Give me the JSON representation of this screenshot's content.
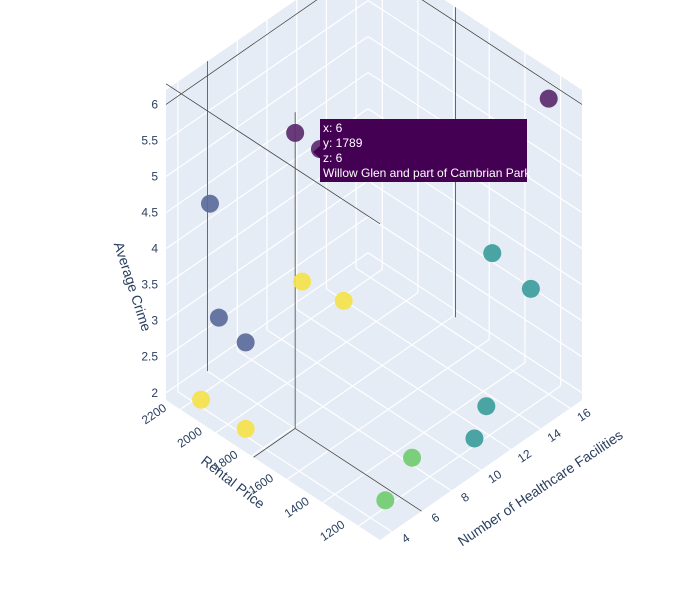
{
  "chart_data": {
    "type": "scatter3d",
    "axes": {
      "x": {
        "title": "Number of Healthcare Facilities",
        "ticks": [
          "4",
          "6",
          "8",
          "10",
          "12",
          "14",
          "16"
        ]
      },
      "y": {
        "title": "Rental Price",
        "ticks": [
          "1200",
          "1400",
          "1600",
          "1800",
          "2000",
          "2200"
        ]
      },
      "z": {
        "title": "Average Crime",
        "ticks": [
          "2",
          "2.5",
          "3",
          "3.5",
          "4",
          "4.5",
          "5",
          "5.5",
          "6"
        ]
      }
    },
    "colors": {
      "purple": "#5c2a6e",
      "indigo": "#5c6a9a",
      "teal": "#3d9d9b",
      "green": "#72cc6f",
      "yellow": "#f5e24b",
      "pane": "#e5ecf6",
      "grid": "#ffffff",
      "tooltip_bg": "#440154"
    },
    "points": [
      {
        "x": 16,
        "y": 1200,
        "z": 6.0,
        "color": "purple"
      },
      {
        "x": 6,
        "y": 1789,
        "z": 6.0,
        "color": "purple"
      },
      {
        "x": 6,
        "y": 1650,
        "z": 6.0,
        "color": "purple"
      },
      {
        "x": 4,
        "y": 2100,
        "z": 4.8,
        "color": "indigo"
      },
      {
        "x": 4,
        "y": 2050,
        "z": 3.3,
        "color": "indigo"
      },
      {
        "x": 4,
        "y": 1900,
        "z": 3.2,
        "color": "indigo"
      },
      {
        "x": 16,
        "y": 1500,
        "z": 4.6,
        "color": "teal"
      },
      {
        "x": 14,
        "y": 1350,
        "z": 3.9,
        "color": "teal"
      },
      {
        "x": 16,
        "y": 1300,
        "z": 3.2,
        "color": "teal"
      },
      {
        "x": 11,
        "y": 1200,
        "z": 2.0,
        "color": "teal"
      },
      {
        "x": 13,
        "y": 1300,
        "z": 2.0,
        "color": "teal"
      },
      {
        "x": 8,
        "y": 1300,
        "z": 2.0,
        "color": "green"
      },
      {
        "x": 5,
        "y": 1200,
        "z": 2.0,
        "color": "green"
      },
      {
        "x": 6,
        "y": 1750,
        "z": 4.0,
        "color": "yellow"
      },
      {
        "x": 10,
        "y": 1850,
        "z": 3.0,
        "color": "yellow"
      },
      {
        "x": 4,
        "y": 2150,
        "z": 2.0,
        "color": "yellow"
      },
      {
        "x": 4,
        "y": 1900,
        "z": 2.0,
        "color": "yellow"
      }
    ],
    "hover": {
      "lines": [
        "x: 6",
        "y: 1789",
        "z: 6",
        "Willow Glen and part of Cambrian Park"
      ]
    }
  }
}
